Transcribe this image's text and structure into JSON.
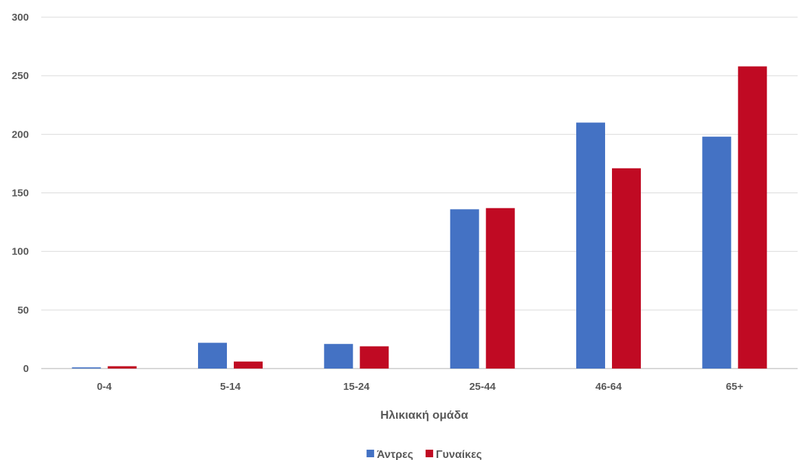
{
  "chart_data": {
    "type": "bar",
    "title": "",
    "xlabel": "Ηλικιακή ομάδα",
    "ylabel": "",
    "categories": [
      "0-4",
      "5-14",
      "15-24",
      "25-44",
      "46-64",
      "65+"
    ],
    "series": [
      {
        "name": "Άντρες",
        "color": "#4472c4",
        "values": [
          1,
          22,
          21,
          136,
          210,
          198
        ]
      },
      {
        "name": "Γυναίκες",
        "color": "#c00a23",
        "values": [
          2,
          6,
          19,
          137,
          171,
          258
        ]
      }
    ],
    "ylim": [
      0,
      300
    ],
    "yticks": [
      0,
      50,
      100,
      150,
      200,
      250,
      300
    ],
    "grid": true,
    "legend_position": "bottom"
  }
}
